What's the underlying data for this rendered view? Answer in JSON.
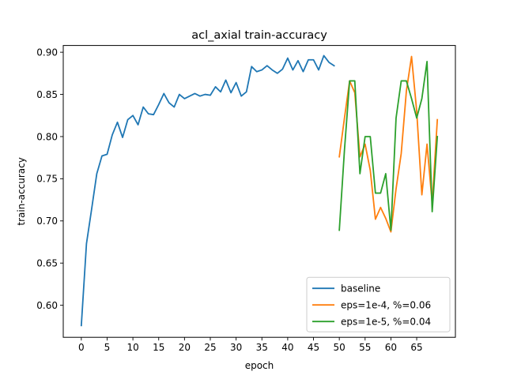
{
  "chart_data": {
    "type": "line",
    "title": "acl_axial train-accuracy",
    "xlabel": "epoch",
    "ylabel": "train-accuracy",
    "xlim": [
      -3.5,
      72.5
    ],
    "ylim": [
      0.562,
      0.908
    ],
    "xticks": [
      0,
      5,
      10,
      15,
      20,
      25,
      30,
      35,
      40,
      45,
      50,
      55,
      60,
      65
    ],
    "yticks": [
      0.6,
      0.65,
      0.7,
      0.75,
      0.8,
      0.85,
      0.9
    ],
    "xtick_labels": [
      "0",
      "5",
      "10",
      "15",
      "20",
      "25",
      "30",
      "35",
      "40",
      "45",
      "50",
      "55",
      "60",
      "65"
    ],
    "ytick_labels": [
      "0.60",
      "0.65",
      "0.70",
      "0.75",
      "0.80",
      "0.85",
      "0.90"
    ],
    "grid": false,
    "legend_position": "lower-right",
    "series": [
      {
        "name": "baseline",
        "color": "#1f77b4",
        "x": [
          0,
          1,
          2,
          3,
          4,
          5,
          6,
          7,
          8,
          9,
          10,
          11,
          12,
          13,
          14,
          15,
          16,
          17,
          18,
          19,
          20,
          21,
          22,
          23,
          24,
          25,
          26,
          27,
          28,
          29,
          30,
          31,
          32,
          33,
          34,
          35,
          36,
          37,
          38,
          39,
          40,
          41,
          42,
          43,
          44,
          45,
          46,
          47,
          48,
          49
        ],
        "y": [
          0.576,
          0.673,
          0.714,
          0.756,
          0.777,
          0.779,
          0.802,
          0.817,
          0.799,
          0.82,
          0.825,
          0.814,
          0.835,
          0.827,
          0.826,
          0.838,
          0.851,
          0.84,
          0.835,
          0.85,
          0.845,
          0.848,
          0.851,
          0.848,
          0.85,
          0.849,
          0.859,
          0.853,
          0.867,
          0.852,
          0.864,
          0.848,
          0.853,
          0.883,
          0.877,
          0.879,
          0.884,
          0.879,
          0.875,
          0.88,
          0.893,
          0.879,
          0.89,
          0.877,
          0.891,
          0.891,
          0.879,
          0.896,
          0.888,
          0.884
        ]
      },
      {
        "name": "eps=1e-4, %=0.06",
        "color": "#ff7f0e",
        "x": [
          50,
          51,
          52,
          53,
          54,
          55,
          56,
          57,
          58,
          59,
          60,
          61,
          62,
          63,
          64,
          65,
          66,
          67,
          68,
          69
        ],
        "y": [
          0.776,
          0.822,
          0.866,
          0.852,
          0.776,
          0.791,
          0.76,
          0.702,
          0.716,
          0.703,
          0.687,
          0.738,
          0.78,
          0.854,
          0.895,
          0.83,
          0.731,
          0.791,
          0.721,
          0.82
        ]
      },
      {
        "name": "eps=1e-5, %=0.04",
        "color": "#2ca02c",
        "x": [
          50,
          51,
          52,
          53,
          54,
          55,
          56,
          57,
          58,
          59,
          60,
          61,
          62,
          63,
          64,
          65,
          66,
          67,
          68,
          69
        ],
        "y": [
          0.689,
          0.784,
          0.866,
          0.866,
          0.756,
          0.8,
          0.8,
          0.733,
          0.733,
          0.756,
          0.689,
          0.822,
          0.866,
          0.866,
          0.845,
          0.822,
          0.845,
          0.889,
          0.711,
          0.8
        ]
      }
    ]
  }
}
